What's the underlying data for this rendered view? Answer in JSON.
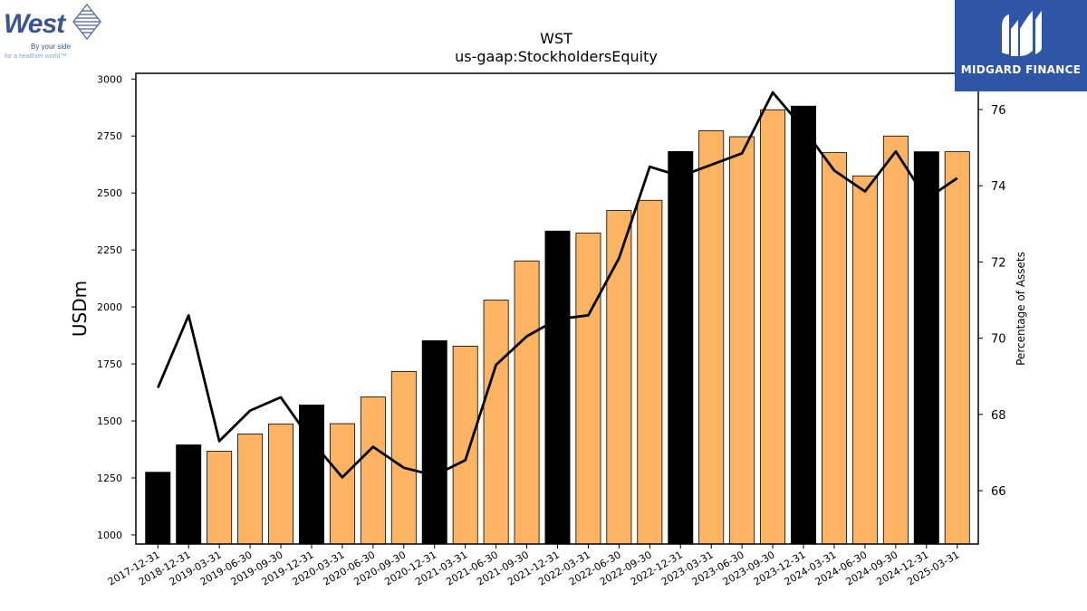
{
  "brand_left": {
    "name": "West",
    "tagline_1": "By your side",
    "tagline_2": "for a healthier world™"
  },
  "brand_right": {
    "name": "MIDGARD FINANCE"
  },
  "colors": {
    "bar_regular": "#fdb462",
    "bar_year_end": "#000000",
    "line": "#000000",
    "brand_right_bg": "#2f55a6",
    "brand_left_text": "#3a5496",
    "brand_left_sub": "#7aaed6"
  },
  "chart_data": {
    "type": "bar",
    "title": "WST",
    "subtitle": "us-gaap:StockholdersEquity",
    "ylabel": "USDm",
    "y2label": "Percentage of Assets",
    "ylim": [
      960,
      3025
    ],
    "y2lim": [
      64.6,
      76.95
    ],
    "yticks": [
      1000,
      1250,
      1500,
      1750,
      2000,
      2250,
      2500,
      2750,
      3000
    ],
    "y2ticks": [
      66,
      68,
      70,
      72,
      74,
      76
    ],
    "grid": false,
    "categories": [
      "2017-12-31",
      "2018-12-31",
      "2019-03-31",
      "2019-06-30",
      "2019-09-30",
      "2019-12-31",
      "2020-03-31",
      "2020-06-30",
      "2020-09-30",
      "2020-12-31",
      "2021-03-31",
      "2021-06-30",
      "2021-09-30",
      "2021-12-31",
      "2022-03-31",
      "2022-06-30",
      "2022-09-30",
      "2022-12-31",
      "2023-03-31",
      "2023-06-30",
      "2023-09-30",
      "2023-12-31",
      "2024-03-31",
      "2024-06-30",
      "2024-09-30",
      "2024-12-31",
      "2025-03-31"
    ],
    "series": [
      {
        "axis": "left",
        "kind": "bar",
        "values": [
          1275,
          1395,
          1367,
          1443,
          1487,
          1570,
          1488,
          1605,
          1717,
          1852,
          1828,
          2030,
          2202,
          2333,
          2324,
          2423,
          2468,
          2682,
          2773,
          2747,
          2865,
          2881,
          2677,
          2575,
          2750,
          2681,
          2681
        ],
        "year_end": [
          true,
          true,
          false,
          false,
          false,
          true,
          false,
          false,
          false,
          true,
          false,
          false,
          false,
          true,
          false,
          false,
          false,
          true,
          false,
          false,
          false,
          true,
          false,
          false,
          false,
          true,
          false
        ]
      },
      {
        "axis": "right",
        "kind": "line",
        "values": [
          68.7,
          70.6,
          67.3,
          68.1,
          68.45,
          67.3,
          66.35,
          67.15,
          66.6,
          66.4,
          66.8,
          69.3,
          70.05,
          70.5,
          70.6,
          72.1,
          74.5,
          74.25,
          74.55,
          74.85,
          76.45,
          75.5,
          74.4,
          73.85,
          74.9,
          73.65,
          74.2
        ]
      }
    ]
  }
}
